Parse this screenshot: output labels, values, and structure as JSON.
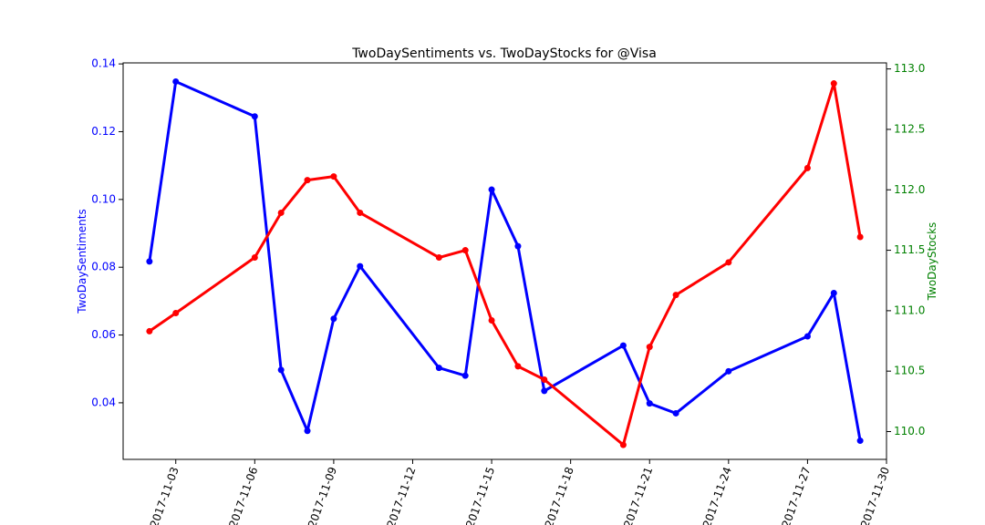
{
  "chart_data": {
    "type": "line",
    "title": "TwoDaySentiments vs. TwoDayStocks for @Visa",
    "xlabel": "",
    "x_ticks": [
      "2017-11-03",
      "2017-11-06",
      "2017-11-09",
      "2017-11-12",
      "2017-11-15",
      "2017-11-18",
      "2017-11-21",
      "2017-11-24",
      "2017-11-27",
      "2017-11-30"
    ],
    "x_range": [
      "2017-11-01",
      "2017-11-30"
    ],
    "grid": false,
    "left_axis": {
      "label": "TwoDaySentiments",
      "color": "#0000ff",
      "ylim": [
        0.0233,
        0.1403
      ],
      "ticks": [
        "0.04",
        "0.06",
        "0.08",
        "0.10",
        "0.12",
        "0.14"
      ]
    },
    "right_axis": {
      "label": "TwoDayStocks",
      "color": "#008000",
      "ylim": [
        109.77,
        113.05
      ],
      "ticks": [
        "110.0",
        "110.5",
        "111.0",
        "111.5",
        "112.0",
        "112.5",
        "113.0"
      ]
    },
    "series": [
      {
        "axis": "left",
        "color": "#0000ff",
        "points": [
          {
            "x": "2017-11-02",
            "y": 0.0817
          },
          {
            "x": "2017-11-03",
            "y": 0.1348
          },
          {
            "x": "2017-11-06",
            "y": 0.1245
          },
          {
            "x": "2017-11-07",
            "y": 0.0497
          },
          {
            "x": "2017-11-08",
            "y": 0.0317
          },
          {
            "x": "2017-11-09",
            "y": 0.0648
          },
          {
            "x": "2017-11-10",
            "y": 0.0803
          },
          {
            "x": "2017-11-13",
            "y": 0.0503
          },
          {
            "x": "2017-11-14",
            "y": 0.048
          },
          {
            "x": "2017-11-15",
            "y": 0.1029
          },
          {
            "x": "2017-11-16",
            "y": 0.0862
          },
          {
            "x": "2017-11-17",
            "y": 0.0435
          },
          {
            "x": "2017-11-20",
            "y": 0.0569
          },
          {
            "x": "2017-11-21",
            "y": 0.0398
          },
          {
            "x": "2017-11-22",
            "y": 0.0369
          },
          {
            "x": "2017-11-24",
            "y": 0.0493
          },
          {
            "x": "2017-11-27",
            "y": 0.0596
          },
          {
            "x": "2017-11-28",
            "y": 0.0724
          },
          {
            "x": "2017-11-29",
            "y": 0.0288
          }
        ]
      },
      {
        "axis": "right",
        "color": "#ff0000",
        "points": [
          {
            "x": "2017-11-02",
            "y": 110.83
          },
          {
            "x": "2017-11-03",
            "y": 110.98
          },
          {
            "x": "2017-11-06",
            "y": 111.44
          },
          {
            "x": "2017-11-07",
            "y": 111.81
          },
          {
            "x": "2017-11-08",
            "y": 112.08
          },
          {
            "x": "2017-11-09",
            "y": 112.11
          },
          {
            "x": "2017-11-10",
            "y": 111.81
          },
          {
            "x": "2017-11-13",
            "y": 111.44
          },
          {
            "x": "2017-11-14",
            "y": 111.5
          },
          {
            "x": "2017-11-15",
            "y": 110.92
          },
          {
            "x": "2017-11-16",
            "y": 110.54
          },
          {
            "x": "2017-11-17",
            "y": 110.43
          },
          {
            "x": "2017-11-20",
            "y": 109.89
          },
          {
            "x": "2017-11-21",
            "y": 110.7
          },
          {
            "x": "2017-11-22",
            "y": 111.13
          },
          {
            "x": "2017-11-24",
            "y": 111.4
          },
          {
            "x": "2017-11-27",
            "y": 112.18
          },
          {
            "x": "2017-11-28",
            "y": 112.88
          },
          {
            "x": "2017-11-29",
            "y": 111.61
          }
        ]
      }
    ]
  }
}
